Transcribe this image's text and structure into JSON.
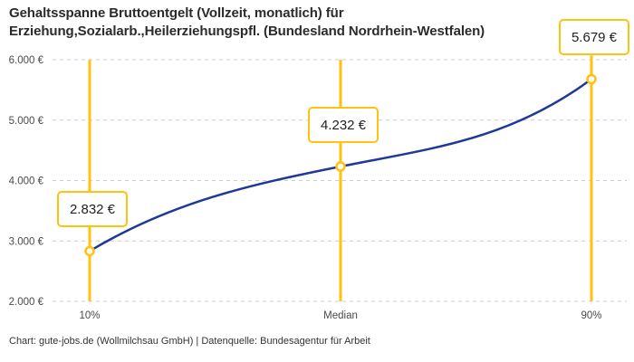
{
  "header": {
    "title_line1": "Gehaltsspanne Bruttoentgelt (Vollzeit, monatlich) für",
    "title_line2": "Erziehung,Sozialarb.,Heilerziehungspfl. (Bundesland Nordrhein-Westfalen)"
  },
  "footer": {
    "text": "Chart: gute-jobs.de (Wollmilchsau GmbH) | Datenquelle: Bundesagentur für Arbeit"
  },
  "chart_data": {
    "type": "line",
    "title": "Gehaltsspanne Bruttoentgelt (Vollzeit, monatlich) für Erziehung,Sozialarb.,Heilerziehungspfl. (Bundesland Nordrhein-Westfalen)",
    "x_categories": [
      "10%",
      "Median",
      "90%"
    ],
    "points": [
      {
        "category": "10%",
        "value": 2832,
        "label": "2.832 €"
      },
      {
        "category": "Median",
        "value": 4232,
        "label": "4.232 €"
      },
      {
        "category": "90%",
        "value": 5679,
        "label": "5.679 €"
      }
    ],
    "y_ticks": [
      {
        "value": 6000,
        "label": "6.000 €"
      },
      {
        "value": 5000,
        "label": "5.000 €"
      },
      {
        "value": 4000,
        "label": "4.000 €"
      },
      {
        "value": 3000,
        "label": "3.000 €"
      },
      {
        "value": 2000,
        "label": "2.000 €"
      }
    ],
    "ylim": [
      2000,
      6000
    ],
    "xlabel": "",
    "ylabel": "",
    "grid": "horizontal-dashed",
    "legend": "none",
    "colors": {
      "line": "#1e3a96",
      "accent": "#ffc20e",
      "grid": "#cccccc",
      "marker_fill": "#ffffff"
    }
  }
}
